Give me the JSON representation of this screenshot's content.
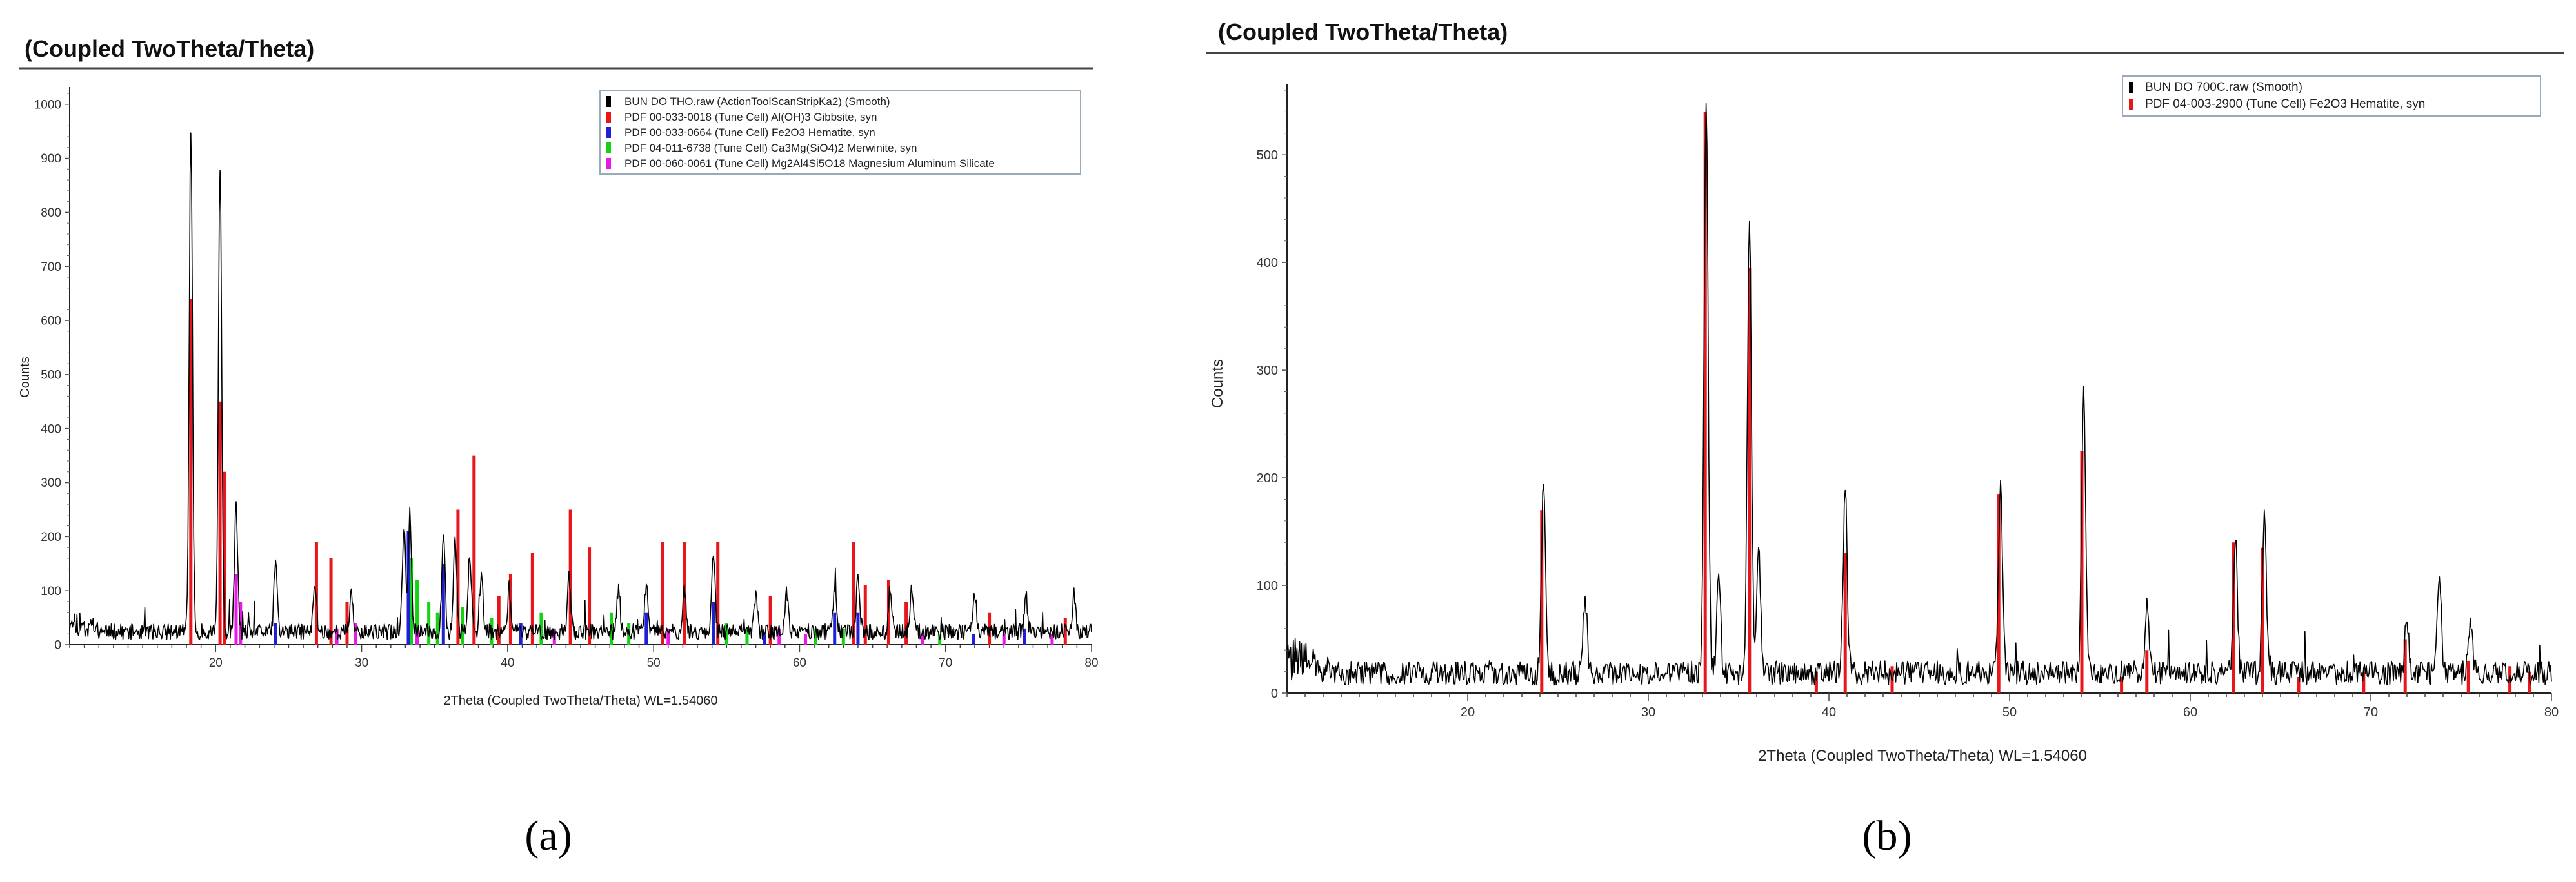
{
  "panels": [
    {
      "letter": "(a)",
      "header": "(Coupled TwoTheta/Theta)",
      "legend": [
        {
          "label": "BUN DO THO.raw (ActionToolScanStripKa2) (Smooth)",
          "color": "#000000"
        },
        {
          "label": "PDF 00-033-0018 (Tune Cell) Al(OH)3 Gibbsite, syn",
          "color": "#e8161b"
        },
        {
          "label": "PDF 00-033-0664 (Tune Cell) Fe2O3 Hematite, syn",
          "color": "#1f1fd6"
        },
        {
          "label": "PDF 04-011-6738 (Tune Cell) Ca3Mg(SiO4)2 Merwinite, syn",
          "color": "#14d214"
        },
        {
          "label": "PDF 00-060-0061 (Tune Cell) Mg2Al4Si5O18 Magnesium Aluminum Silicate",
          "color": "#e619e6"
        }
      ]
    },
    {
      "letter": "(b)",
      "header": "(Coupled TwoTheta/Theta)",
      "legend": [
        {
          "label": "BUN DO 700C.raw (Smooth)",
          "color": "#000000"
        },
        {
          "label": "PDF 04-003-2900 (Tune Cell) Fe2O3 Hematite, syn",
          "color": "#e8161b"
        }
      ]
    }
  ],
  "chart_data": [
    {
      "type": "line",
      "title": "(Coupled TwoTheta/Theta)",
      "xlabel": "2Theta (Coupled TwoTheta/Theta) WL=1.54060",
      "ylabel": "Counts",
      "xlim": [
        10,
        80
      ],
      "ylim": [
        0,
        1020
      ],
      "xticks": [
        20,
        30,
        40,
        50,
        60,
        70,
        80
      ],
      "yticks": [
        0,
        100,
        200,
        300,
        400,
        500,
        600,
        700,
        800,
        900,
        1000
      ],
      "grid": false,
      "legend_position": "top-right",
      "peaks": [
        [
          18.3,
          930
        ],
        [
          20.3,
          860
        ],
        [
          21.4,
          230
        ],
        [
          24.1,
          130
        ],
        [
          26.8,
          90
        ],
        [
          29.3,
          70
        ],
        [
          32.9,
          190
        ],
        [
          33.3,
          220
        ],
        [
          35.6,
          190
        ],
        [
          36.4,
          170
        ],
        [
          37.4,
          150
        ],
        [
          38.2,
          110
        ],
        [
          40.1,
          80
        ],
        [
          44.2,
          100
        ],
        [
          47.6,
          80
        ],
        [
          49.5,
          90
        ],
        [
          52.1,
          80
        ],
        [
          54.1,
          150
        ],
        [
          57.0,
          70
        ],
        [
          59.1,
          70
        ],
        [
          62.4,
          80
        ],
        [
          64.0,
          100
        ],
        [
          66.2,
          80
        ],
        [
          67.7,
          80
        ],
        [
          72.0,
          70
        ],
        [
          75.5,
          70
        ],
        [
          78.8,
          70
        ]
      ],
      "background_level": 32,
      "series": [
        {
          "name": "BUN DO THO.raw (ActionToolScanStripKa2) (Smooth)",
          "color": "#000000"
        },
        {
          "name": "PDF 00-033-0018 (Tune Cell) Al(OH)3 Gibbsite, syn",
          "color": "#e8161b",
          "sticks": [
            [
              18.3,
              640
            ],
            [
              20.3,
              450
            ],
            [
              20.6,
              320
            ],
            [
              26.9,
              190
            ],
            [
              27.9,
              160
            ],
            [
              29.0,
              80
            ],
            [
              36.6,
              250
            ],
            [
              37.7,
              350
            ],
            [
              39.4,
              90
            ],
            [
              40.2,
              130
            ],
            [
              41.7,
              170
            ],
            [
              44.3,
              250
            ],
            [
              45.6,
              180
            ],
            [
              50.6,
              190
            ],
            [
              52.1,
              190
            ],
            [
              54.4,
              190
            ],
            [
              58.0,
              90
            ],
            [
              63.7,
              190
            ],
            [
              64.5,
              110
            ],
            [
              66.1,
              120
            ],
            [
              67.3,
              80
            ],
            [
              73.0,
              60
            ],
            [
              78.2,
              50
            ]
          ]
        },
        {
          "name": "PDF 00-033-0664 (Tune Cell) Fe2O3 Hematite, syn",
          "color": "#1f1fd6",
          "sticks": [
            [
              24.1,
              40
            ],
            [
              33.2,
              210
            ],
            [
              35.6,
              150
            ],
            [
              40.9,
              40
            ],
            [
              49.5,
              60
            ],
            [
              54.1,
              80
            ],
            [
              57.6,
              20
            ],
            [
              62.4,
              60
            ],
            [
              64.0,
              60
            ],
            [
              71.9,
              20
            ],
            [
              75.4,
              30
            ]
          ]
        },
        {
          "name": "PDF 04-011-6738 (Tune Cell) Ca3Mg(SiO4)2 Merwinite, syn",
          "color": "#14d214",
          "sticks": [
            [
              33.4,
              160
            ],
            [
              33.8,
              120
            ],
            [
              34.6,
              80
            ],
            [
              35.2,
              60
            ],
            [
              36.9,
              70
            ],
            [
              38.9,
              50
            ],
            [
              42.3,
              60
            ],
            [
              47.1,
              60
            ],
            [
              48.3,
              40
            ],
            [
              55.0,
              40
            ],
            [
              56.4,
              30
            ],
            [
              61.1,
              30
            ],
            [
              63.0,
              30
            ],
            [
              69.6,
              20
            ]
          ]
        },
        {
          "name": "PDF 00-060-0061 (Tune Cell) Mg2Al4Si5O18 Magnesium Aluminum Silicate",
          "color": "#e619e6",
          "sticks": [
            [
              21.4,
              130
            ],
            [
              21.7,
              80
            ],
            [
              28.3,
              30
            ],
            [
              29.6,
              40
            ],
            [
              33.8,
              30
            ],
            [
              43.2,
              30
            ],
            [
              51.0,
              30
            ],
            [
              58.6,
              30
            ],
            [
              60.4,
              20
            ],
            [
              68.4,
              20
            ],
            [
              74.0,
              20
            ],
            [
              77.3,
              20
            ]
          ]
        }
      ]
    },
    {
      "type": "line",
      "title": "(Coupled TwoTheta/Theta)",
      "xlabel": "2Theta (Coupled TwoTheta/Theta) WL=1.54060",
      "ylabel": "Counts",
      "xlim": [
        10,
        80
      ],
      "ylim": [
        0,
        560
      ],
      "xticks": [
        20,
        30,
        40,
        50,
        60,
        70,
        80
      ],
      "yticks": [
        0,
        100,
        200,
        300,
        400,
        500
      ],
      "grid": false,
      "legend_position": "top-right",
      "peaks": [
        [
          24.2,
          180
        ],
        [
          33.2,
          540
        ],
        [
          35.6,
          425
        ],
        [
          40.9,
          170
        ],
        [
          49.5,
          175
        ],
        [
          54.1,
          265
        ],
        [
          57.6,
          60
        ],
        [
          62.5,
          125
        ],
        [
          64.1,
          150
        ],
        [
          72.0,
          50
        ],
        [
          75.5,
          50
        ],
        [
          73.8,
          95
        ],
        [
          26.5,
          70
        ],
        [
          33.9,
          90
        ],
        [
          36.1,
          120
        ]
      ],
      "background_level": 25,
      "series": [
        {
          "name": "BUN DO 700C.raw (Smooth)",
          "color": "#000000"
        },
        {
          "name": "PDF 04-003-2900 (Tune Cell) Fe2O3 Hematite, syn",
          "color": "#e8161b",
          "sticks": [
            [
              24.1,
              170
            ],
            [
              33.15,
              540
            ],
            [
              35.6,
              395
            ],
            [
              39.3,
              20
            ],
            [
              40.9,
              130
            ],
            [
              43.5,
              25
            ],
            [
              49.4,
              185
            ],
            [
              54.0,
              225
            ],
            [
              56.2,
              15
            ],
            [
              57.6,
              40
            ],
            [
              62.4,
              140
            ],
            [
              64.0,
              135
            ],
            [
              66.0,
              15
            ],
            [
              69.6,
              20
            ],
            [
              71.9,
              50
            ],
            [
              75.4,
              30
            ],
            [
              77.7,
              25
            ],
            [
              78.8,
              20
            ]
          ]
        }
      ]
    }
  ]
}
